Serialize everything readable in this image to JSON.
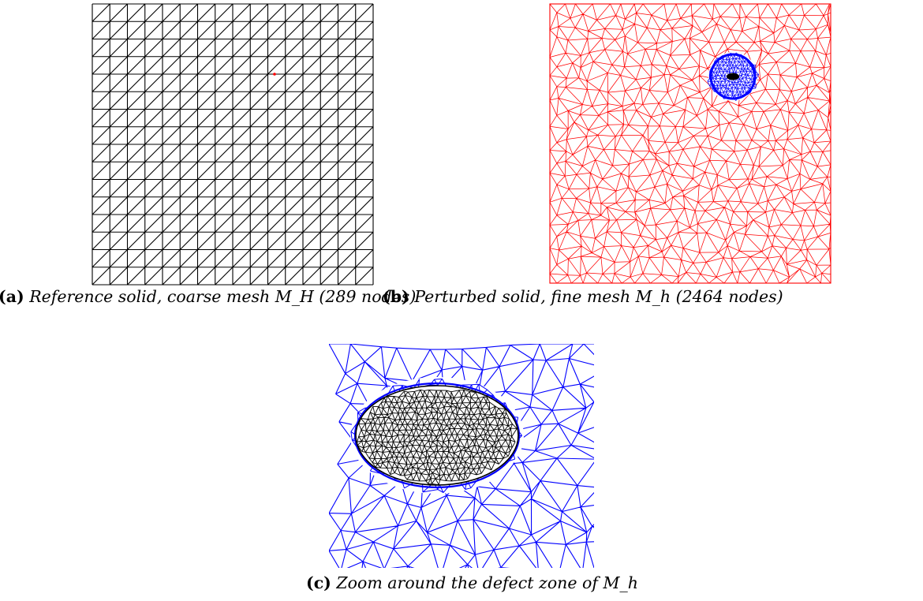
{
  "figure": {
    "panel_a": {
      "tag": "(a)",
      "caption": "Reference solid, coarse mesh M_H (289 nodes)",
      "mesh_color": "#000000",
      "marker_color": "#ff0000",
      "grid_divisions": 16
    },
    "panel_b": {
      "tag": "(b)",
      "caption": "Perturbed solid, fine mesh M_h (2464 nodes)",
      "outer_mesh_color": "#ff0000",
      "defect_mesh_color": "#0000ff",
      "defect_core_color": "#000000"
    },
    "panel_c": {
      "tag": "(c)",
      "caption": "Zoom around the defect zone of M_h",
      "outer_mesh_color": "#0000ff",
      "defect_mesh_color": "#000000"
    }
  }
}
